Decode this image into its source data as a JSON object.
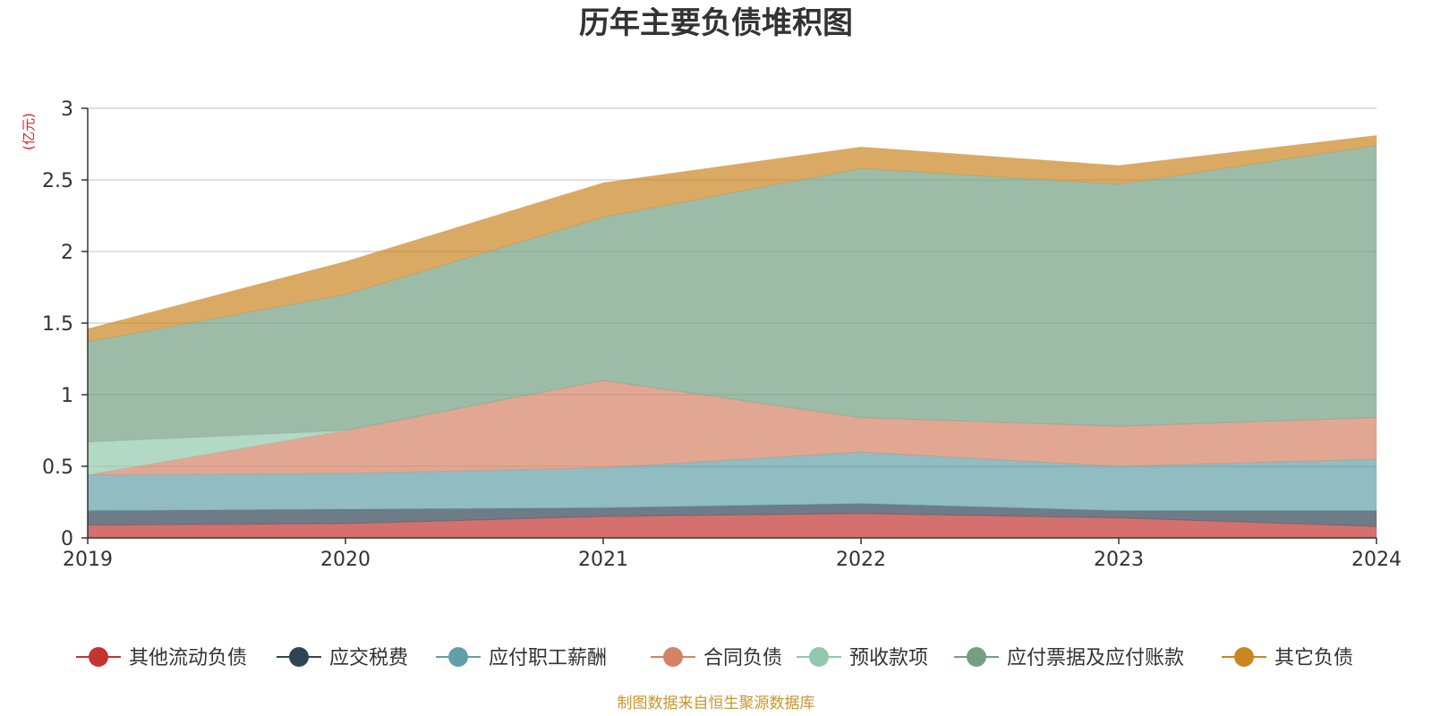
{
  "chart_data": {
    "type": "area",
    "stacked": true,
    "title": "历年主要负债堆积图",
    "y_unit": "(亿元)",
    "categories": [
      "2019",
      "2020",
      "2021",
      "2022",
      "2023",
      "2024"
    ],
    "ylim": [
      0,
      3
    ],
    "yticks": [
      "0",
      "0.5",
      "1",
      "1.5",
      "2",
      "2.5",
      "3"
    ],
    "grid": true,
    "legend_position": "bottom",
    "series": [
      {
        "name": "其他流动负债",
        "color": "#c23531",
        "values": [
          0.09,
          0.1,
          0.15,
          0.17,
          0.14,
          0.08
        ]
      },
      {
        "name": "应交税费",
        "color": "#2f4554",
        "values": [
          0.1,
          0.1,
          0.06,
          0.07,
          0.05,
          0.11
        ]
      },
      {
        "name": "应付职工薪酬",
        "color": "#61a0a8",
        "values": [
          0.25,
          0.25,
          0.28,
          0.36,
          0.31,
          0.36
        ]
      },
      {
        "name": "合同负债",
        "color": "#d48265",
        "values": [
          0.0,
          0.3,
          0.61,
          0.24,
          0.28,
          0.29
        ]
      },
      {
        "name": "预收款项",
        "color": "#91c7ae",
        "values": [
          0.23,
          0.0,
          0.0,
          0.0,
          0.0,
          0.0
        ]
      },
      {
        "name": "应付票据及应付账款",
        "color": "#749f83",
        "values": [
          0.7,
          0.95,
          1.14,
          1.74,
          1.69,
          1.9
        ]
      },
      {
        "name": "其它负债",
        "color": "#ca8622",
        "values": [
          0.09,
          0.23,
          0.24,
          0.15,
          0.13,
          0.07
        ]
      }
    ]
  },
  "footer": {
    "source": "制图数据来自恒生聚源数据库"
  }
}
